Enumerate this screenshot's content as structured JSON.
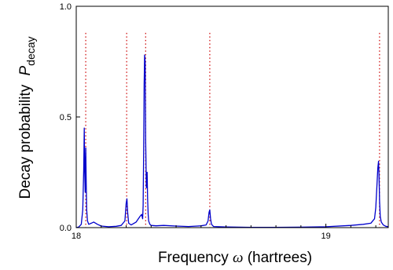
{
  "chart_data": {
    "type": "line",
    "title": "",
    "xlabel_prefix": "Frequency",
    "xlabel_symbol": "ω",
    "xlabel_suffix": "(hartrees)",
    "ylabel_prefix": "Decay probability",
    "ylabel_symbol": "P",
    "ylabel_subscript": "decay",
    "xlim": [
      18.0,
      19.25
    ],
    "ylim": [
      0.0,
      1.0
    ],
    "x_ticks": [
      {
        "value": 18.0,
        "label": "18"
      },
      {
        "value": 19.0,
        "label": "19"
      }
    ],
    "y_ticks": [
      {
        "value": 0.0,
        "label": "0.0"
      },
      {
        "value": 0.5,
        "label": "0.5"
      },
      {
        "value": 1.0,
        "label": "1.0"
      }
    ],
    "grid": false,
    "legend": "none",
    "colors": {
      "curve": "#0000cc",
      "reference_lines": "#cc0000",
      "axes": "#000000"
    },
    "reference_lines_x": [
      18.038,
      18.202,
      18.278,
      18.535,
      19.215
    ],
    "series": [
      {
        "x": [
          18.0,
          18.01,
          18.02,
          18.026,
          18.03,
          18.032,
          18.034,
          18.036,
          18.038,
          18.04,
          18.042,
          18.045,
          18.05,
          18.06,
          18.07,
          18.085,
          18.1,
          18.13,
          18.16,
          18.18,
          18.195,
          18.2,
          18.203,
          18.206,
          18.21,
          18.22,
          18.24,
          18.255,
          18.262,
          18.266,
          18.268,
          18.27,
          18.272,
          18.274,
          18.276,
          18.278,
          18.281,
          18.284,
          18.286,
          18.288,
          18.29,
          18.295,
          18.3,
          18.32,
          18.35,
          18.4,
          18.45,
          18.5,
          18.52,
          18.528,
          18.532,
          18.535,
          18.538,
          18.542,
          18.55,
          18.6,
          18.7,
          18.8,
          18.9,
          19.0,
          19.1,
          19.15,
          19.18,
          19.195,
          19.2,
          19.205,
          19.208,
          19.211,
          19.213,
          19.215,
          19.218,
          19.222,
          19.23,
          19.24,
          19.25
        ],
        "y": [
          0.0,
          0.003,
          0.015,
          0.08,
          0.26,
          0.45,
          0.25,
          0.16,
          0.36,
          0.2,
          0.08,
          0.03,
          0.015,
          0.02,
          0.025,
          0.015,
          0.007,
          0.004,
          0.006,
          0.01,
          0.03,
          0.11,
          0.13,
          0.07,
          0.02,
          0.012,
          0.025,
          0.05,
          0.06,
          0.04,
          0.1,
          0.35,
          0.65,
          0.78,
          0.75,
          0.4,
          0.18,
          0.25,
          0.13,
          0.06,
          0.03,
          0.015,
          0.01,
          0.008,
          0.01,
          0.007,
          0.005,
          0.008,
          0.012,
          0.03,
          0.07,
          0.08,
          0.04,
          0.015,
          0.005,
          0.003,
          0.001,
          0.001,
          0.002,
          0.004,
          0.01,
          0.015,
          0.02,
          0.04,
          0.09,
          0.2,
          0.27,
          0.3,
          0.24,
          0.12,
          0.05,
          0.025,
          0.012,
          0.006,
          0.004
        ]
      }
    ]
  }
}
